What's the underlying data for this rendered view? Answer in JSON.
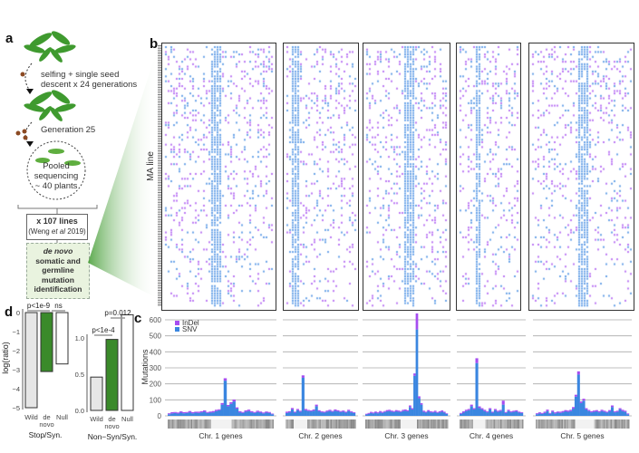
{
  "panel_labels": {
    "a": "a",
    "b": "b",
    "c": "c",
    "d": "d"
  },
  "panel_a": {
    "step1": "selfing + single seed",
    "step1b": "descent x 24 generations",
    "step2": "Generation 25",
    "pool1": "Pooled",
    "pool2": "sequencing",
    "pool3": "~ 40 plants",
    "lines_bold": "x 107 lines",
    "lines_ref_pre": "(Weng ",
    "lines_ref_italic": "et al",
    "lines_ref_post": " 2019)",
    "id_italic": "de novo",
    "id_l2": "somatic and",
    "id_l3": "germline",
    "id_l4": "mutation",
    "id_l5": "identification",
    "colors": {
      "plant": "#3f9a2f",
      "seed": "#8b4a23",
      "box_fill": "#e9f3df"
    }
  },
  "panel_b": {
    "ylabel": "MA line",
    "colors": {
      "snv": "#3a86e0",
      "indel": "#a64df0"
    }
  },
  "chart_data": [
    {
      "type": "bar",
      "stacked": true,
      "ylabel": "Mutations",
      "ylim": [
        0,
        650
      ],
      "yticks": [
        0,
        100,
        200,
        300,
        400,
        500,
        600
      ],
      "grid": true,
      "legend": {
        "placement": "top-left",
        "entries": [
          "InDel",
          "SNV"
        ]
      },
      "colors": {
        "InDel": "#a64df0",
        "SNV": "#3a86e0"
      },
      "panels": [
        {
          "label": "Chr. 1 genes",
          "SNV": [
            10,
            15,
            18,
            14,
            20,
            16,
            18,
            22,
            16,
            20,
            18,
            22,
            26,
            18,
            20,
            22,
            30,
            35,
            70,
            220,
            60,
            75,
            90,
            45,
            22,
            18,
            26,
            30,
            22,
            18,
            24,
            20,
            15,
            20,
            18,
            10
          ],
          "InDel": [
            6,
            8,
            6,
            7,
            8,
            7,
            6,
            8,
            7,
            6,
            8,
            7,
            8,
            6,
            7,
            8,
            8,
            6,
            10,
            15,
            8,
            10,
            12,
            8,
            7,
            6,
            8,
            9,
            7,
            6,
            8,
            7,
            6,
            7,
            6,
            4
          ]
        },
        {
          "label": "Chr. 2 genes",
          "SNV": [
            18,
            22,
            40,
            20,
            35,
            25,
            238,
            35,
            30,
            28,
            32,
            60,
            28,
            22,
            20,
            26,
            30,
            25,
            32,
            28,
            24,
            26,
            20,
            30,
            22,
            18
          ],
          "InDel": [
            8,
            7,
            9,
            6,
            8,
            7,
            15,
            8,
            7,
            6,
            8,
            10,
            7,
            6,
            6,
            7,
            8,
            6,
            8,
            7,
            6,
            7,
            6,
            8,
            6,
            5
          ]
        },
        {
          "label": "Chr. 3 genes",
          "SNV": [
            8,
            12,
            18,
            15,
            20,
            16,
            22,
            18,
            24,
            28,
            30,
            26,
            24,
            28,
            26,
            24,
            30,
            32,
            28,
            55,
            40,
            250,
            540,
            110,
            70,
            25,
            20,
            28,
            22,
            20,
            24,
            18,
            22,
            26,
            20,
            12
          ],
          "InDel": [
            5,
            6,
            7,
            6,
            7,
            6,
            8,
            7,
            6,
            8,
            8,
            7,
            6,
            8,
            7,
            6,
            8,
            8,
            7,
            10,
            8,
            15,
            100,
            12,
            9,
            7,
            6,
            8,
            7,
            6,
            8,
            6,
            7,
            8,
            6,
            4
          ]
        },
        {
          "label": "Chr. 4 genes",
          "SNV": [
            12,
            20,
            30,
            35,
            60,
            40,
            330,
            50,
            40,
            30,
            22,
            40,
            20,
            35,
            25,
            30,
            70,
            18,
            30,
            22,
            25,
            28,
            20,
            18
          ],
          "InDel": [
            6,
            8,
            8,
            8,
            10,
            8,
            30,
            9,
            8,
            8,
            6,
            8,
            6,
            8,
            7,
            7,
            25,
            6,
            8,
            6,
            7,
            7,
            6,
            5
          ]
        },
        {
          "label": "Chr. 5 genes",
          "SNV": [
            10,
            15,
            12,
            18,
            30,
            12,
            25,
            15,
            20,
            18,
            22,
            28,
            25,
            30,
            45,
            120,
            258,
            80,
            95,
            40,
            30,
            22,
            25,
            28,
            22,
            30,
            25,
            20,
            28,
            55,
            22,
            25,
            40,
            30,
            25,
            10
          ],
          "InDel": [
            6,
            7,
            6,
            8,
            9,
            6,
            8,
            7,
            7,
            8,
            8,
            8,
            8,
            8,
            10,
            12,
            20,
            10,
            12,
            8,
            7,
            7,
            8,
            8,
            7,
            8,
            7,
            6,
            8,
            10,
            6,
            7,
            8,
            8,
            7,
            5
          ]
        }
      ]
    },
    {
      "type": "bar",
      "xlabel": "Stop/Syn.",
      "ylabel": "log(ratio)",
      "ylim": [
        -5.2,
        0.2
      ],
      "yticks": [
        0,
        -1,
        -2,
        -3,
        -4,
        -5
      ],
      "categories": [
        "Wild",
        "de novo",
        "Null"
      ],
      "values": [
        -5.0,
        -3.1,
        -2.7
      ],
      "colors": [
        "#e6e6e6",
        "#3a8a2a",
        "#ffffff"
      ],
      "annotations": [
        {
          "text": "p<1e-9",
          "between": [
            "Wild",
            "de novo"
          ]
        },
        {
          "text": "ns",
          "between": [
            "de novo",
            "Null"
          ]
        }
      ]
    },
    {
      "type": "bar",
      "xlabel": "Non−Syn/Syn.",
      "ylabel": "",
      "ylim": [
        0,
        1.4
      ],
      "yticks": [
        0.0,
        0.5,
        1.0
      ],
      "categories": [
        "Wild",
        "de novo",
        "Null"
      ],
      "values": [
        0.46,
        0.98,
        1.32
      ],
      "colors": [
        "#e6e6e6",
        "#3a8a2a",
        "#ffffff"
      ],
      "annotations": [
        {
          "text": "p<1e-4",
          "between": [
            "Wild",
            "de novo"
          ]
        },
        {
          "text": "p=0.012",
          "between": [
            "de novo",
            "Null"
          ]
        }
      ]
    }
  ]
}
